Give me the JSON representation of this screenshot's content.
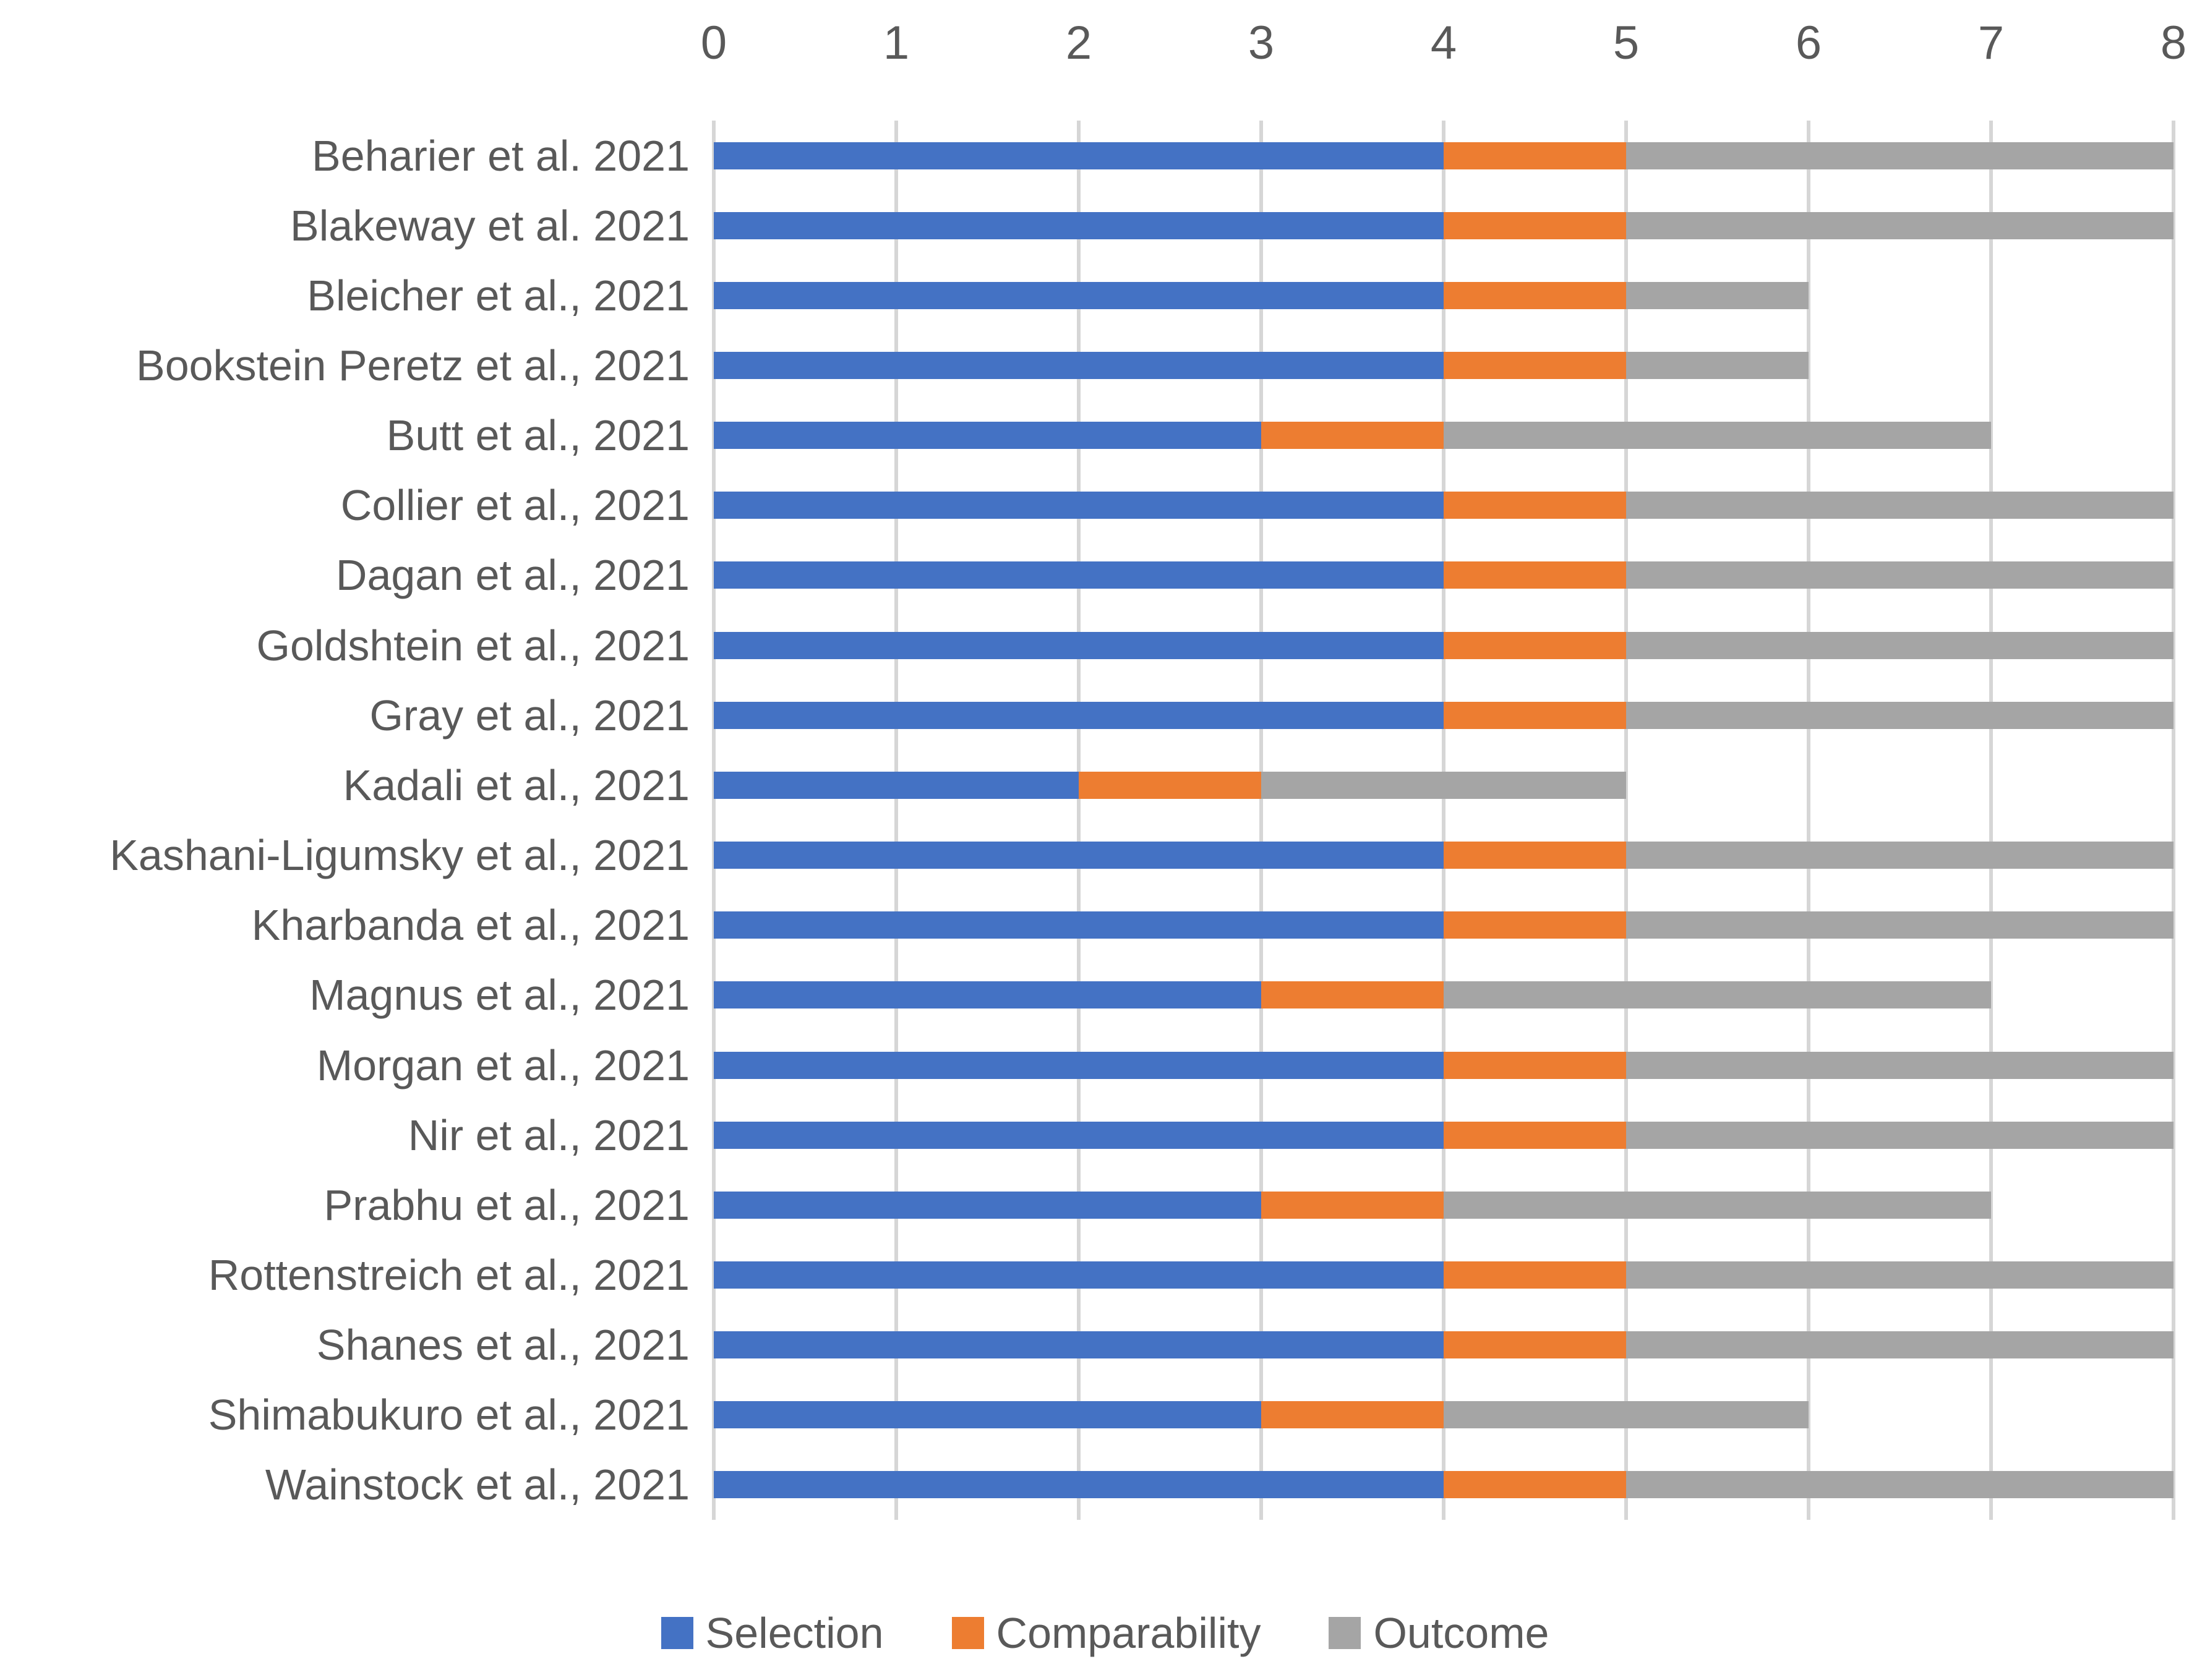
{
  "chart_data": {
    "type": "bar",
    "orientation": "horizontal",
    "stacked": true,
    "title": "",
    "xlabel": "",
    "ylabel": "",
    "xlim": [
      0,
      8
    ],
    "x_ticks": [
      0,
      1,
      2,
      3,
      4,
      5,
      6,
      7,
      8
    ],
    "grid": true,
    "legend_position": "bottom",
    "categories": [
      "Beharier et al. 2021",
      "Blakeway et al. 2021",
      "Bleicher et al., 2021",
      "Bookstein Peretz et al., 2021",
      "Butt et al., 2021",
      "Collier et al., 2021",
      "Dagan et al., 2021",
      "Goldshtein et al., 2021",
      "Gray et al., 2021",
      "Kadali et al., 2021",
      "Kashani-Ligumsky et al., 2021",
      "Kharbanda et al., 2021",
      "Magnus et al., 2021",
      "Morgan et al., 2021",
      "Nir et al., 2021",
      "Prabhu et al., 2021",
      "Rottenstreich et al., 2021",
      "Shanes et al., 2021",
      "Shimabukuro et al., 2021",
      "Wainstock et al., 2021"
    ],
    "series": [
      {
        "name": "Selection",
        "color": "#4472C4",
        "values": [
          4,
          4,
          4,
          4,
          3,
          4,
          4,
          4,
          4,
          2,
          4,
          4,
          3,
          4,
          4,
          3,
          4,
          4,
          3,
          4
        ]
      },
      {
        "name": "Comparability",
        "color": "#ED7D31",
        "values": [
          1,
          1,
          1,
          1,
          1,
          1,
          1,
          1,
          1,
          1,
          1,
          1,
          1,
          1,
          1,
          1,
          1,
          1,
          1,
          1
        ]
      },
      {
        "name": "Outcome",
        "color": "#A5A5A5",
        "values": [
          3,
          3,
          1,
          1,
          3,
          3,
          3,
          3,
          3,
          2,
          3,
          3,
          3,
          3,
          3,
          3,
          3,
          3,
          2,
          3
        ]
      }
    ],
    "totals": [
      8,
      8,
      6,
      6,
      7,
      8,
      8,
      8,
      8,
      5,
      8,
      8,
      7,
      8,
      8,
      7,
      8,
      8,
      6,
      8
    ]
  },
  "colors": {
    "gridline": "#D6D6D6",
    "axis_text": "#595959",
    "background": "#FFFFFF"
  }
}
